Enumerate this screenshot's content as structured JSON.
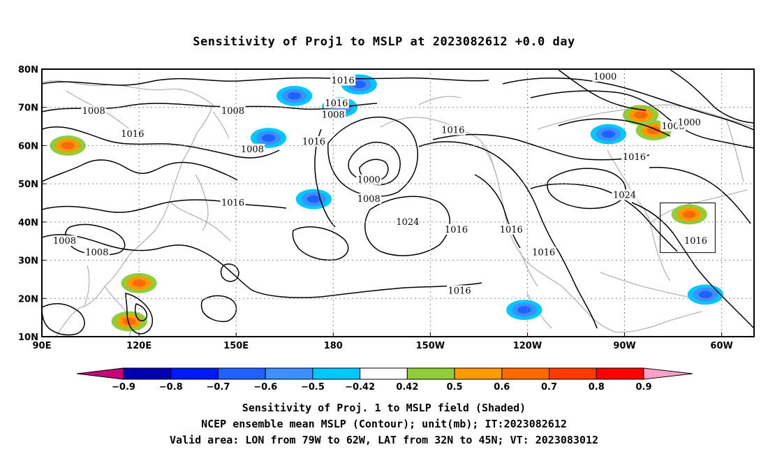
{
  "title": "Sensitivity of Proj1 to MSLP at 2023082612 +0.0 day",
  "axes": {
    "lat_labels": [
      "80N",
      "70N",
      "60N",
      "50N",
      "40N",
      "30N",
      "20N",
      "10N"
    ],
    "lon_labels": [
      "90E",
      "120E",
      "150E",
      "180",
      "150W",
      "120W",
      "90W",
      "60W"
    ]
  },
  "contours": {
    "labels": [
      {
        "text": "1016",
        "lon": -177,
        "lat": 77
      },
      {
        "text": "1016",
        "lon": -179,
        "lat": 71
      },
      {
        "text": "1008",
        "lon": -180,
        "lat": 68
      },
      {
        "text": "1000",
        "lon": -96,
        "lat": 78
      },
      {
        "text": "1008",
        "lon": 106,
        "lat": 69
      },
      {
        "text": "1008",
        "lon": 149,
        "lat": 69
      },
      {
        "text": "1016",
        "lon": 118,
        "lat": 63
      },
      {
        "text": "1008",
        "lon": 155,
        "lat": 59
      },
      {
        "text": "1016",
        "lon": 174,
        "lat": 61
      },
      {
        "text": "1016",
        "lon": -143,
        "lat": 64
      },
      {
        "text": "1008",
        "lon": -75,
        "lat": 65
      },
      {
        "text": "1000",
        "lon": -70,
        "lat": 66
      },
      {
        "text": "1016",
        "lon": -87,
        "lat": 57
      },
      {
        "text": "1000",
        "lon": -169,
        "lat": 51
      },
      {
        "text": "1008",
        "lon": -169,
        "lat": 46
      },
      {
        "text": "1024",
        "lon": -90,
        "lat": 47
      },
      {
        "text": "1016",
        "lon": 149,
        "lat": 45
      },
      {
        "text": "1024",
        "lon": -157,
        "lat": 40
      },
      {
        "text": "1016",
        "lon": -142,
        "lat": 38
      },
      {
        "text": "1016",
        "lon": -125,
        "lat": 38
      },
      {
        "text": "1016",
        "lon": -115,
        "lat": 32
      },
      {
        "text": "1016",
        "lon": -68,
        "lat": 35
      },
      {
        "text": "1008",
        "lon": 97,
        "lat": 35
      },
      {
        "text": "1008",
        "lon": 107,
        "lat": 32
      },
      {
        "text": "1016",
        "lon": -141,
        "lat": 22
      }
    ]
  },
  "valid_box": {
    "lon_min": -79,
    "lon_max": -62,
    "lat_min": 32,
    "lat_max": 45
  },
  "colorbar": {
    "labels": [
      "−0.9",
      "−0.8",
      "−0.7",
      "−0.6",
      "−0.5",
      "−0.42",
      "0.42",
      "0.5",
      "0.6",
      "0.7",
      "0.8",
      "0.9"
    ],
    "colors": [
      "#0000b0",
      "#0018ff",
      "#2060ff",
      "#3b8fff",
      "#00c8ff",
      "#ffffff",
      "#8fce3a",
      "#ff9a00",
      "#ff6a00",
      "#ff3a00",
      "#ff0000"
    ],
    "low_end_color": "#c8007a",
    "high_end_color": "#ffa0c8"
  },
  "captions": [
    "Sensitivity of Proj. 1 to MSLP field (Shaded)",
    "NCEP ensemble mean MSLP (Contour); unit(mb); IT:2023082612",
    "Valid area: LON from 79W to 62W, LAT from 32N to 45N; VT: 2023083012"
  ],
  "shading": [
    {
      "lon": 168,
      "lat": 73,
      "kind": "neg"
    },
    {
      "lon": -172,
      "lat": 76,
      "kind": "neg"
    },
    {
      "lon": -178,
      "lat": 70,
      "kind": "neg"
    },
    {
      "lon": 160,
      "lat": 62,
      "kind": "neg"
    },
    {
      "lon": 174,
      "lat": 46,
      "kind": "neg"
    },
    {
      "lon": -95,
      "lat": 63,
      "kind": "neg"
    },
    {
      "lon": 120,
      "lat": 24,
      "kind": "pos"
    },
    {
      "lon": 117,
      "lat": 14,
      "kind": "pos"
    },
    {
      "lon": 98,
      "lat": 60,
      "kind": "pos"
    },
    {
      "lon": -85,
      "lat": 68,
      "kind": "pos"
    },
    {
      "lon": -81,
      "lat": 64,
      "kind": "pos"
    },
    {
      "lon": -70,
      "lat": 42,
      "kind": "pos"
    },
    {
      "lon": -65,
      "lat": 21,
      "kind": "neg"
    },
    {
      "lon": -121,
      "lat": 17,
      "kind": "neg"
    }
  ]
}
